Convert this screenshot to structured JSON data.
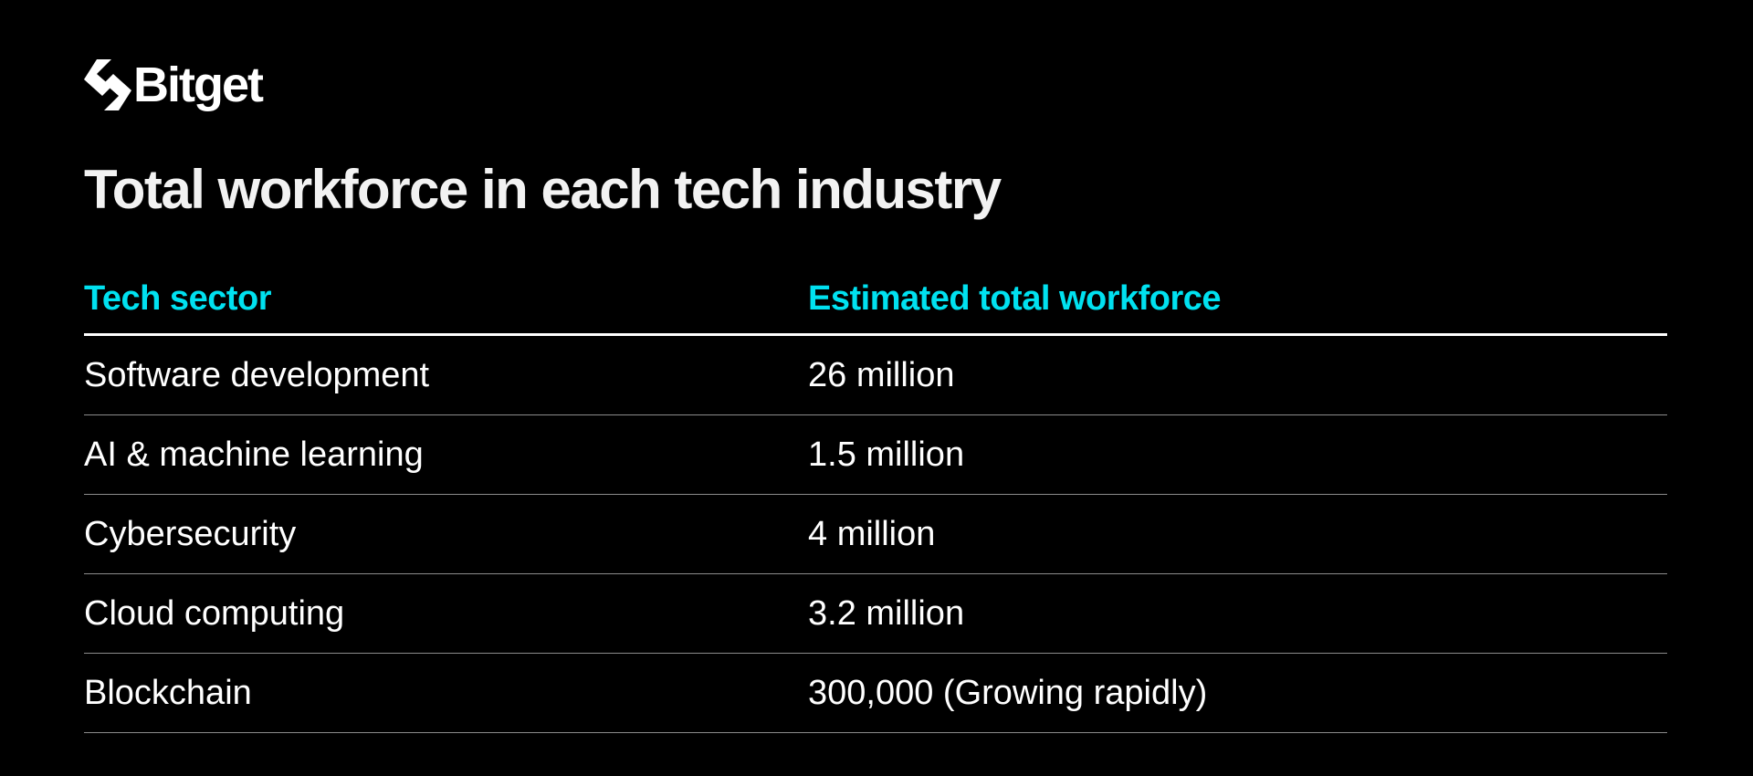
{
  "brand": {
    "name": "Bitget",
    "icon": "bitget-logo-icon"
  },
  "title": "Total workforce in each tech industry",
  "table": {
    "headers": [
      "Tech sector",
      "Estimated total workforce"
    ],
    "rows": [
      [
        "Software development",
        "26 million"
      ],
      [
        "AI & machine learning",
        "1.5 million"
      ],
      [
        "Cybersecurity",
        "4 million"
      ],
      [
        "Cloud computing",
        "3.2 million"
      ],
      [
        "Blockchain",
        "300,000 (Growing rapidly)"
      ]
    ]
  },
  "colors": {
    "background": "#000000",
    "header_accent": "#00e1f0",
    "text": "#ffffff"
  }
}
